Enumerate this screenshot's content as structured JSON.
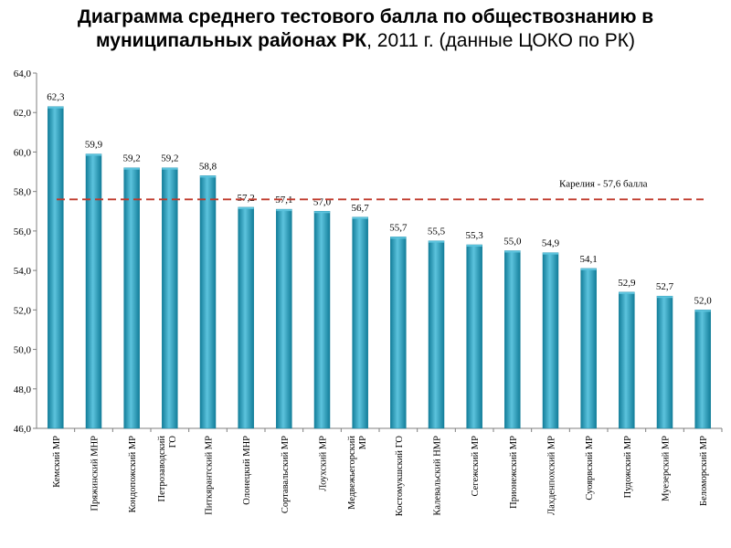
{
  "title": {
    "bold_line1": "Диаграмма среднего тестового балла по обществознанию в",
    "bold_line2": "муниципальных районах РК",
    "normal_tail": ", 2011 г. (данные ЦОКО по РК)"
  },
  "chart_data": {
    "type": "bar",
    "title": "Диаграмма среднего тестового балла по обществознанию в муниципальных районах РК, 2011 г. (данные ЦОКО по РК)",
    "xlabel": "",
    "ylabel": "",
    "ylim": [
      46.0,
      64.0
    ],
    "yticks": [
      46.0,
      48.0,
      50.0,
      52.0,
      54.0,
      56.0,
      58.0,
      60.0,
      62.0,
      64.0
    ],
    "ytick_labels": [
      "46,0",
      "48,0",
      "50,0",
      "52,0",
      "54,0",
      "56,0",
      "58,0",
      "60,0",
      "62,0",
      "64,0"
    ],
    "grid": false,
    "categories": [
      [
        "Кемский МР"
      ],
      [
        "Пряжинский МНР"
      ],
      [
        "Кондопожский МР"
      ],
      [
        "Петрозаводский",
        "ГО"
      ],
      [
        "Питкярантский МР"
      ],
      [
        "Олонецкий МНР"
      ],
      [
        "Сортавальский МР"
      ],
      [
        "Лоухский МР"
      ],
      [
        "Медвежьегорский",
        "МР"
      ],
      [
        "Костомукшский ГО"
      ],
      [
        "Калевальский НМР"
      ],
      [
        "Сегежский МР"
      ],
      [
        "Прионежский МР"
      ],
      [
        "Лахденпохский МР"
      ],
      [
        "Суоярвский МР"
      ],
      [
        "Пудожский МР"
      ],
      [
        "Муезерский МР"
      ],
      [
        "Беломорский МР"
      ]
    ],
    "values": [
      62.3,
      59.9,
      59.2,
      59.2,
      58.8,
      57.2,
      57.1,
      57.0,
      56.7,
      55.7,
      55.5,
      55.3,
      55.0,
      54.9,
      54.1,
      52.9,
      52.7,
      52.0
    ],
    "value_labels": [
      "62,3",
      "59,9",
      "59,2",
      "59,2",
      "58,8",
      "57,2",
      "57,1",
      "57,0",
      "56,7",
      "55,7",
      "55,5",
      "55,3",
      "55,0",
      "54,9",
      "54,1",
      "52,9",
      "52,7",
      "52,0"
    ],
    "reference_line": {
      "value": 57.6,
      "label": "Карелия - 57,6 балла",
      "style": "dashed"
    },
    "colors": {
      "bar_light": "#5cc3dd",
      "bar_mid": "#2aa0c0",
      "bar_dark": "#137e9a",
      "axis": "#7f7f7f",
      "reference": "#c0392b"
    }
  }
}
